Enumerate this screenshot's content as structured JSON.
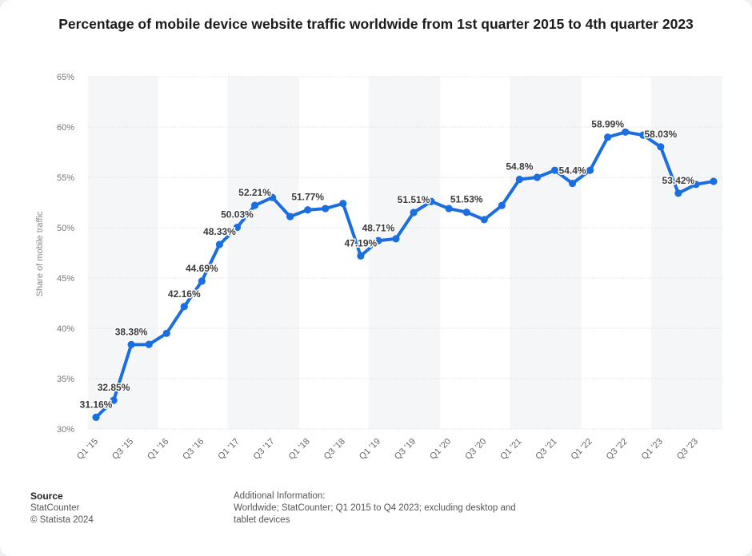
{
  "chart_data": {
    "type": "line",
    "title": "Percentage of mobile device website traffic worldwide from 1st quarter 2015 to 4th quarter 2023",
    "ylabel": "Share of mobile traffic",
    "xlabel": "",
    "ylim": [
      30,
      65
    ],
    "yticks": [
      "30%",
      "35%",
      "40%",
      "45%",
      "50%",
      "55%",
      "60%",
      "65%"
    ],
    "categories": [
      "Q1 '15",
      "Q2 '15",
      "Q3 '15",
      "Q4 '15",
      "Q1 '16",
      "Q2 '16",
      "Q3 '16",
      "Q4 '16",
      "Q1 '17",
      "Q2 '17",
      "Q3 '17",
      "Q4 '17",
      "Q1 '18",
      "Q2 '18",
      "Q3 '18",
      "Q4 '18",
      "Q1 '19",
      "Q2 '19",
      "Q3 '19",
      "Q4 '19",
      "Q1 '20",
      "Q2 '20",
      "Q3 '20",
      "Q4 '20",
      "Q1 '21",
      "Q2 '21",
      "Q3 '21",
      "Q4 '21",
      "Q1 '22",
      "Q2 '22",
      "Q3 '22",
      "Q4 '22",
      "Q1 '23",
      "Q2 '23",
      "Q3 '23",
      "Q4 '23"
    ],
    "xtick_labels": [
      "Q1 '15",
      "Q3 '15",
      "Q1 '16",
      "Q3 '16",
      "Q1 '17",
      "Q3 '17",
      "Q1 '18",
      "Q3 '18",
      "Q1 '19",
      "Q3 '19",
      "Q1 '20",
      "Q3 '20",
      "Q1 '21",
      "Q3 '21",
      "Q1 '22",
      "Q3 '22",
      "Q1 '23",
      "Q3 '23"
    ],
    "series": [
      {
        "name": "Share of mobile traffic",
        "color": "#1a6ee0",
        "values": [
          31.16,
          32.85,
          38.38,
          38.4,
          39.5,
          42.16,
          44.69,
          48.33,
          50.03,
          52.21,
          53.0,
          51.1,
          51.77,
          51.9,
          52.4,
          47.19,
          48.71,
          48.9,
          51.51,
          52.6,
          51.9,
          51.53,
          50.8,
          52.2,
          54.8,
          55.0,
          55.7,
          54.4,
          55.7,
          58.99,
          59.5,
          59.2,
          58.03,
          53.42,
          54.3,
          54.6
        ]
      }
    ],
    "data_labels": [
      {
        "index": 0,
        "text": "31.16%"
      },
      {
        "index": 1,
        "text": "32.85%"
      },
      {
        "index": 2,
        "text": "38.38%"
      },
      {
        "index": 5,
        "text": "42.16%"
      },
      {
        "index": 6,
        "text": "44.69%"
      },
      {
        "index": 7,
        "text": "48.33%"
      },
      {
        "index": 8,
        "text": "50.03%"
      },
      {
        "index": 9,
        "text": "52.21%"
      },
      {
        "index": 12,
        "text": "51.77%"
      },
      {
        "index": 15,
        "text": "47.19%"
      },
      {
        "index": 16,
        "text": "48.71%"
      },
      {
        "index": 18,
        "text": "51.51%"
      },
      {
        "index": 21,
        "text": "51.53%"
      },
      {
        "index": 24,
        "text": "54.8%"
      },
      {
        "index": 27,
        "text": "54.4%"
      },
      {
        "index": 29,
        "text": "58.99%"
      },
      {
        "index": 32,
        "text": "58.03%"
      },
      {
        "index": 33,
        "text": "53.42%"
      }
    ],
    "grid": true,
    "legend": "none"
  },
  "footer": {
    "source_heading": "Source",
    "source_name": "StatCounter",
    "copyright": "© Statista 2024",
    "info_heading": "Additional Information:",
    "info_text": "Worldwide; StatCounter; Q1 2015 to Q4 2023; excluding desktop and tablet devices"
  }
}
